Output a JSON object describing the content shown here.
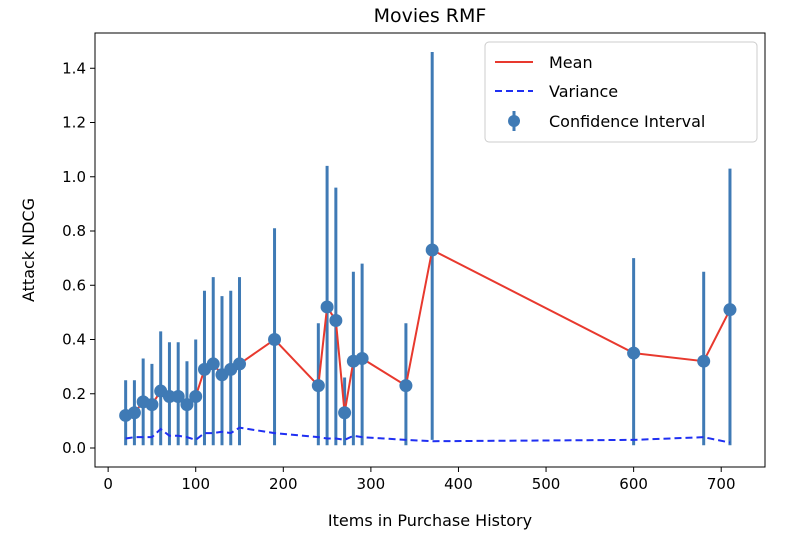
{
  "chart_data": {
    "type": "line",
    "title": "Movies RMF",
    "xlabel": "Items in Purchase History",
    "ylabel": "Attack NDCG",
    "xlim": [
      -15,
      750
    ],
    "ylim": [
      -0.07,
      1.53
    ],
    "xticks": [
      0,
      100,
      200,
      300,
      400,
      500,
      600,
      700
    ],
    "yticks": [
      0.0,
      0.2,
      0.4,
      0.6,
      0.8,
      1.0,
      1.2,
      1.4
    ],
    "xtick_labels": [
      "0",
      "100",
      "200",
      "300",
      "400",
      "500",
      "600",
      "700"
    ],
    "ytick_labels": [
      "0.0",
      "0.2",
      "0.4",
      "0.6",
      "0.8",
      "1.0",
      "1.2",
      "1.4"
    ],
    "grid": false,
    "legend_position": "top-right",
    "x": [
      20,
      30,
      40,
      50,
      60,
      70,
      80,
      90,
      100,
      110,
      120,
      130,
      140,
      150,
      190,
      240,
      250,
      260,
      270,
      280,
      290,
      340,
      370,
      600,
      680,
      710
    ],
    "series": [
      {
        "name": "Mean",
        "style": "solid",
        "color": "#e8392e",
        "values": [
          0.12,
          0.13,
          0.17,
          0.16,
          0.21,
          0.19,
          0.19,
          0.16,
          0.19,
          0.29,
          0.31,
          0.27,
          0.29,
          0.31,
          0.4,
          0.23,
          0.52,
          0.47,
          0.13,
          0.32,
          0.33,
          0.23,
          0.73,
          0.35,
          0.32,
          0.51
        ]
      },
      {
        "name": "Variance",
        "style": "dashed",
        "color": "#1f2ff2",
        "values": [
          0.035,
          0.04,
          0.04,
          0.04,
          0.07,
          0.045,
          0.045,
          0.04,
          0.03,
          0.055,
          0.055,
          0.06,
          0.055,
          0.075,
          0.055,
          0.04,
          0.035,
          0.035,
          0.03,
          0.045,
          0.04,
          0.03,
          0.025,
          0.03,
          0.04,
          0.02
        ]
      },
      {
        "name": "Confidence Interval",
        "style": "errorbar",
        "color": "#3f7ab5",
        "lower": [
          0.01,
          0.01,
          0.01,
          0.01,
          0.01,
          0.01,
          0.01,
          0.01,
          0.01,
          0.01,
          0.01,
          0.01,
          0.01,
          0.01,
          0.01,
          0.01,
          0.01,
          0.01,
          0.01,
          0.01,
          0.01,
          0.01,
          0.03,
          0.01,
          0.01,
          0.01
        ],
        "upper": [
          0.25,
          0.25,
          0.33,
          0.31,
          0.43,
          0.39,
          0.39,
          0.32,
          0.4,
          0.58,
          0.63,
          0.56,
          0.58,
          0.63,
          0.81,
          0.46,
          1.04,
          0.96,
          0.26,
          0.65,
          0.68,
          0.46,
          1.46,
          0.7,
          0.65,
          1.03
        ]
      }
    ]
  }
}
